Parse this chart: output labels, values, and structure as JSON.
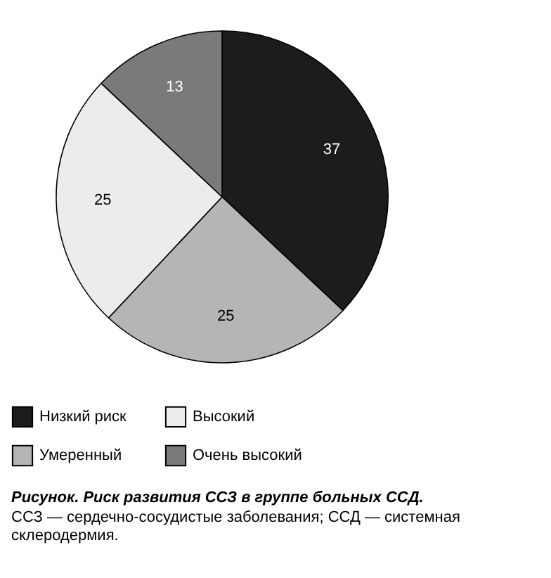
{
  "chart_data": {
    "type": "pie",
    "title": "Рисунок. Риск развития ССЗ в группе больных ССД.",
    "annotations": [
      "ССЗ — сердечно-сосудистые заболевания; ССД — системная склеродермия."
    ],
    "categories": [
      "Низкий риск",
      "Умеренный",
      "Высокий",
      "Очень высокий"
    ],
    "values": [
      37,
      25,
      25,
      13
    ],
    "colors": [
      "#1c1c1c",
      "#b5b5b5",
      "#ececec",
      "#7a7a7a"
    ],
    "data_labels": true,
    "legend": "bottom"
  }
}
